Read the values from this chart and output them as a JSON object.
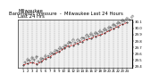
{
  "title_left": "Milwaukee\nLast 24 Hrs",
  "title_center": "Barometric Pressure  -  Milwaukee Last 24 Hours",
  "x_hours": [
    1,
    2,
    3,
    4,
    5,
    6,
    7,
    8,
    9,
    10,
    11,
    12,
    13,
    14,
    15,
    16,
    17,
    18,
    19,
    20,
    21,
    22,
    23,
    24
  ],
  "pressure": [
    29.42,
    29.44,
    29.46,
    29.43,
    29.47,
    29.52,
    29.55,
    29.6,
    29.63,
    29.68,
    29.72,
    29.73,
    29.76,
    29.79,
    29.82,
    29.84,
    29.87,
    29.89,
    29.92,
    29.96,
    29.99,
    30.03,
    30.06,
    30.09
  ],
  "ylim": [
    29.38,
    30.14
  ],
  "yticks": [
    29.4,
    29.5,
    29.6,
    29.7,
    29.8,
    29.9,
    30.0,
    30.1
  ],
  "ytick_labels": [
    "29.4",
    "29.5",
    "29.6",
    "29.7",
    "29.8",
    "29.9",
    "30.0",
    "30.1"
  ],
  "line_color": "#dd0000",
  "marker_color": "#111111",
  "grid_color": "#999999",
  "bg_color": "#ffffff",
  "plot_bg": "#f0f0f0",
  "title_fontsize": 3.8,
  "tick_fontsize": 2.8,
  "label_fontsize": 2.2,
  "label_rotation": 50
}
